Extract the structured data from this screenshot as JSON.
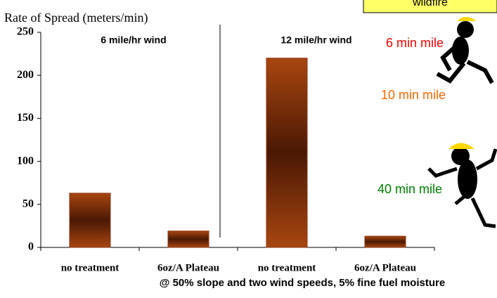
{
  "chart_data": {
    "type": "bar",
    "title": "Rate of Spread (meters/min)",
    "categories": [
      "no treatment",
      "6oz/A Plateau",
      "no treatment",
      "6oz/A Plateau"
    ],
    "values": [
      63,
      19,
      220,
      13
    ],
    "ylim": [
      0,
      250
    ],
    "yticks": [
      0,
      50,
      100,
      150,
      200,
      250
    ],
    "color": "#8b3410",
    "group_labels": [
      "6 mile/hr wind",
      "12 mile/hr wind"
    ],
    "pace_labels": [
      {
        "text": "6 min mile",
        "color": "#ff0000"
      },
      {
        "text": "10 min mile",
        "color": "#ff6600"
      },
      {
        "text": "40 min mile",
        "color": "#008000"
      }
    ],
    "box_label": "wildfire",
    "caption": "@ 50% slope and two wind speeds, 5% fine fuel moisture"
  }
}
